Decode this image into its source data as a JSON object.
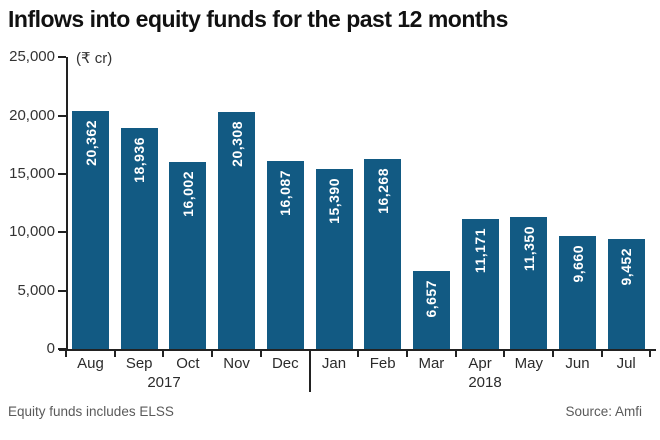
{
  "title": "Inflows into equity funds for the past 12 months",
  "unit_label": "(₹ cr)",
  "footer": {
    "left_note": "Equity funds includes ELSS",
    "source": "Source: Amfi"
  },
  "chart_data": {
    "type": "bar",
    "title": "Inflows into equity funds for the past 12 months",
    "ylabel": "₹ cr",
    "xlabel": "",
    "categories": [
      "Aug",
      "Sep",
      "Oct",
      "Nov",
      "Dec",
      "Jan",
      "Feb",
      "Mar",
      "Apr",
      "May",
      "Jun",
      "Jul"
    ],
    "values": [
      20362,
      18936,
      16002,
      20308,
      16087,
      15390,
      16268,
      6657,
      11171,
      11350,
      9660,
      9452
    ],
    "value_labels": [
      "20,362",
      "18,936",
      "16,002",
      "20,308",
      "16,087",
      "15,390",
      "16,268",
      "6,657",
      "11,171",
      "11,350",
      "9,660",
      "9,452"
    ],
    "y_ticks": [
      {
        "value": 25000,
        "label": "25,000"
      },
      {
        "value": 20000,
        "label": "20,000"
      },
      {
        "value": 15000,
        "label": "15,000"
      },
      {
        "value": 10000,
        "label": "10,000"
      },
      {
        "value": 5000,
        "label": "5,000"
      },
      {
        "value": 0,
        "label": "0"
      }
    ],
    "ylim": [
      0,
      25000
    ],
    "year_groups": [
      {
        "label": "2017",
        "months": [
          "Aug",
          "Sep",
          "Oct",
          "Nov",
          "Dec"
        ]
      },
      {
        "label": "2018",
        "months": [
          "Jan",
          "Feb",
          "Mar",
          "Apr",
          "May",
          "Jun",
          "Jul"
        ]
      }
    ],
    "grid": false,
    "legend": null,
    "bar_color": "#125a83",
    "value_label_color": "#ffffff",
    "axis_color": "#222222"
  }
}
